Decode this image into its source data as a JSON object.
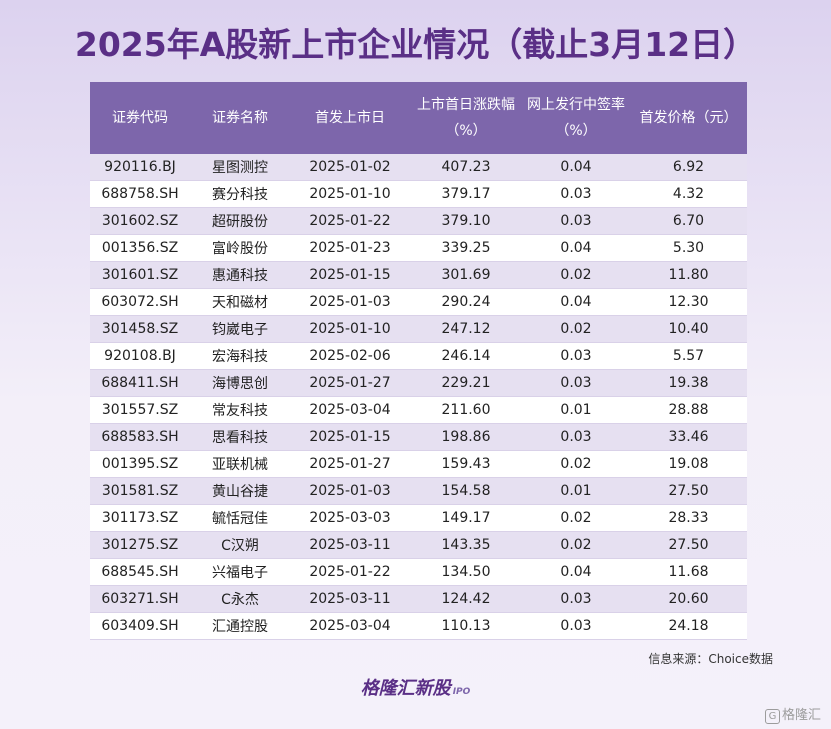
{
  "title": "2025年A股新上市企业情况（截止3月12日）",
  "table": {
    "headers": [
      "证券代码",
      "证券名称",
      "首发上市日",
      "上市首日涨跌幅（%）",
      "网上发行中签率（%）",
      "首发价格（元）"
    ],
    "rows": [
      [
        "920116.BJ",
        "星图测控",
        "2025-01-02",
        "407.23",
        "0.04",
        "6.92"
      ],
      [
        "688758.SH",
        "赛分科技",
        "2025-01-10",
        "379.17",
        "0.03",
        "4.32"
      ],
      [
        "301602.SZ",
        "超研股份",
        "2025-01-22",
        "379.10",
        "0.03",
        "6.70"
      ],
      [
        "001356.SZ",
        "富岭股份",
        "2025-01-23",
        "339.25",
        "0.04",
        "5.30"
      ],
      [
        "301601.SZ",
        "惠通科技",
        "2025-01-15",
        "301.69",
        "0.02",
        "11.80"
      ],
      [
        "603072.SH",
        "天和磁材",
        "2025-01-03",
        "290.24",
        "0.04",
        "12.30"
      ],
      [
        "301458.SZ",
        "钧崴电子",
        "2025-01-10",
        "247.12",
        "0.02",
        "10.40"
      ],
      [
        "920108.BJ",
        "宏海科技",
        "2025-02-06",
        "246.14",
        "0.03",
        "5.57"
      ],
      [
        "688411.SH",
        "海博思创",
        "2025-01-27",
        "229.21",
        "0.03",
        "19.38"
      ],
      [
        "301557.SZ",
        "常友科技",
        "2025-03-04",
        "211.60",
        "0.01",
        "28.88"
      ],
      [
        "688583.SH",
        "思看科技",
        "2025-01-15",
        "198.86",
        "0.03",
        "33.46"
      ],
      [
        "001395.SZ",
        "亚联机械",
        "2025-01-27",
        "159.43",
        "0.02",
        "19.08"
      ],
      [
        "301581.SZ",
        "黄山谷捷",
        "2025-01-03",
        "154.58",
        "0.01",
        "27.50"
      ],
      [
        "301173.SZ",
        "毓恬冠佳",
        "2025-03-03",
        "149.17",
        "0.02",
        "28.33"
      ],
      [
        "301275.SZ",
        "C汉朔",
        "2025-03-11",
        "143.35",
        "0.02",
        "27.50"
      ],
      [
        "688545.SH",
        "兴福电子",
        "2025-01-22",
        "134.50",
        "0.04",
        "11.68"
      ],
      [
        "603271.SH",
        "C永杰",
        "2025-03-11",
        "124.42",
        "0.03",
        "20.60"
      ],
      [
        "603409.SH",
        "汇通控股",
        "2025-03-04",
        "110.13",
        "0.03",
        "24.18"
      ]
    ]
  },
  "source": "信息来源：Choice数据",
  "brand": {
    "name": "格隆汇新股",
    "suffix": "IPO"
  },
  "watermark": {
    "name": "格隆汇新股",
    "suffix": "IPO"
  },
  "corner_logo": {
    "icon": "G",
    "text": "格隆汇"
  },
  "colors": {
    "title": "#5a2f86",
    "header_bg": "#7d66ab",
    "row_stripe": "#e6e0f1"
  }
}
